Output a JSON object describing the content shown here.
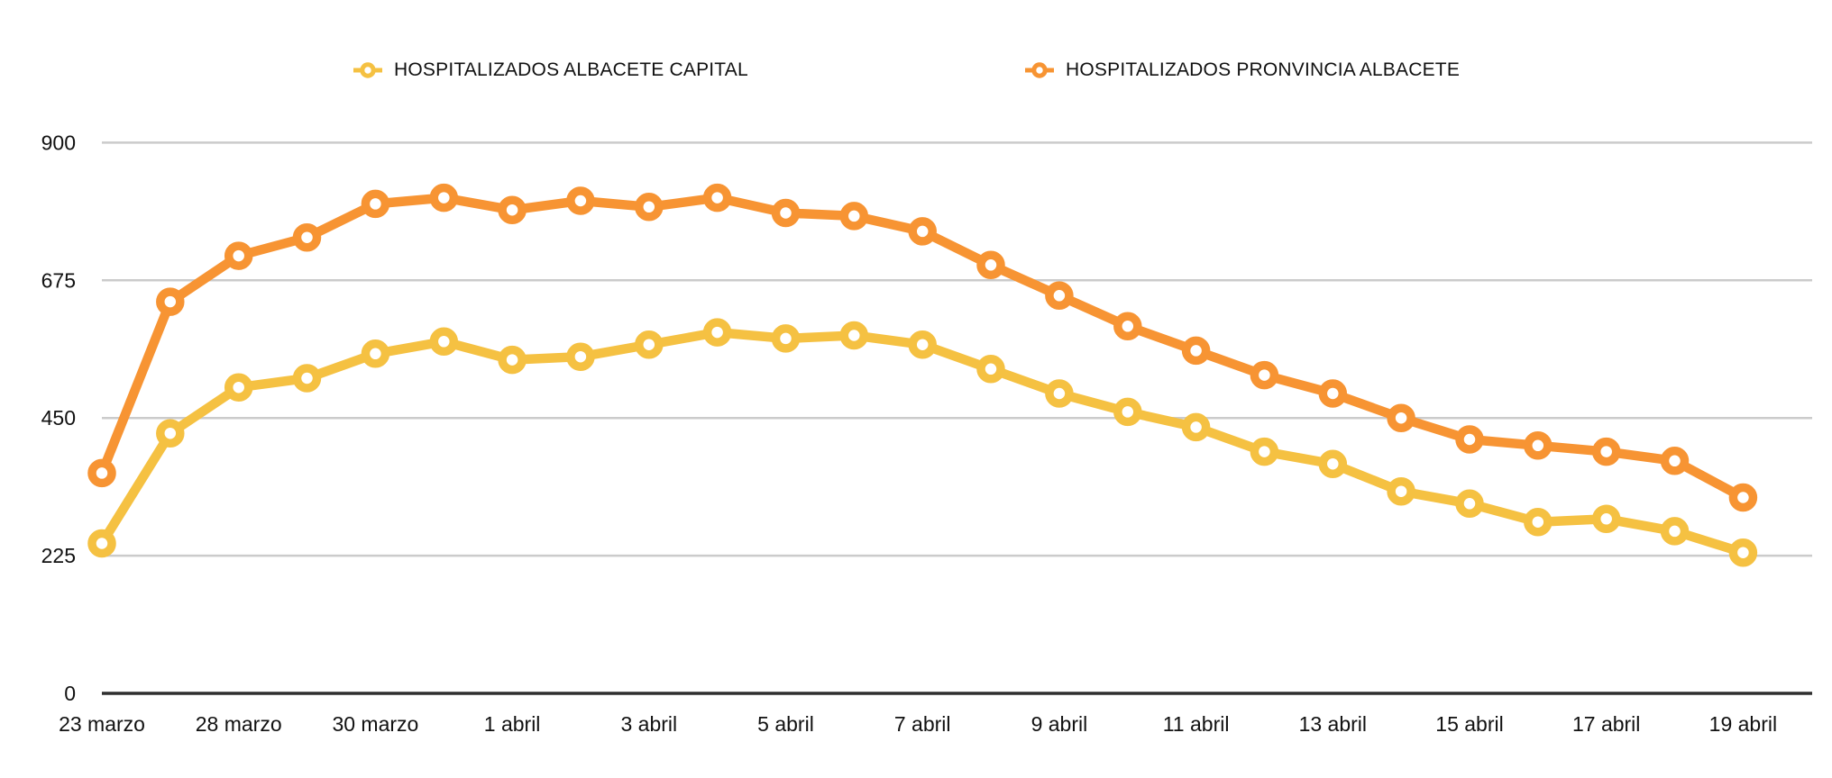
{
  "legend": {
    "items": [
      {
        "label": "HOSPITALIZADOS ALBACETE CAPITAL",
        "color": "#F5C142"
      },
      {
        "label": "HOSPITALIZADOS PRONVINCIA ALBACETE",
        "color": "#F79433"
      }
    ]
  },
  "chart_data": {
    "type": "line",
    "title": "",
    "x_tick_labels": [
      "23 marzo",
      "28 marzo",
      "30 marzo",
      "1 abril",
      "3 abril",
      "5 abril",
      "7 abril",
      "9 abril",
      "11 abril",
      "13 abril",
      "15 abril",
      "17 abril",
      "19 abril"
    ],
    "label_every": 2,
    "num_points": 25,
    "y_ticks": [
      0,
      225,
      450,
      675,
      900
    ],
    "ylim": [
      0,
      900
    ],
    "grid": true,
    "legend_position": "top",
    "marker_style": "open-circle",
    "series": [
      {
        "name": "HOSPITALIZADOS ALBACETE CAPITAL",
        "color": "#F5C142",
        "values": [
          245,
          425,
          500,
          515,
          555,
          575,
          545,
          550,
          570,
          590,
          580,
          585,
          570,
          530,
          490,
          460,
          435,
          395,
          375,
          330,
          310,
          280,
          285,
          265,
          230
        ]
      },
      {
        "name": "HOSPITALIZADOS PRONVINCIA ALBACETE",
        "color": "#F79433",
        "values": [
          360,
          640,
          715,
          745,
          800,
          810,
          790,
          805,
          795,
          810,
          785,
          780,
          755,
          700,
          650,
          600,
          560,
          520,
          490,
          450,
          415,
          405,
          395,
          380,
          320
        ]
      }
    ],
    "colors": {
      "capital": "#F5C142",
      "provincia": "#F79433",
      "gridline": "#CBCBCB",
      "axis_line": "#2F2F2F",
      "text": "#111111"
    }
  }
}
